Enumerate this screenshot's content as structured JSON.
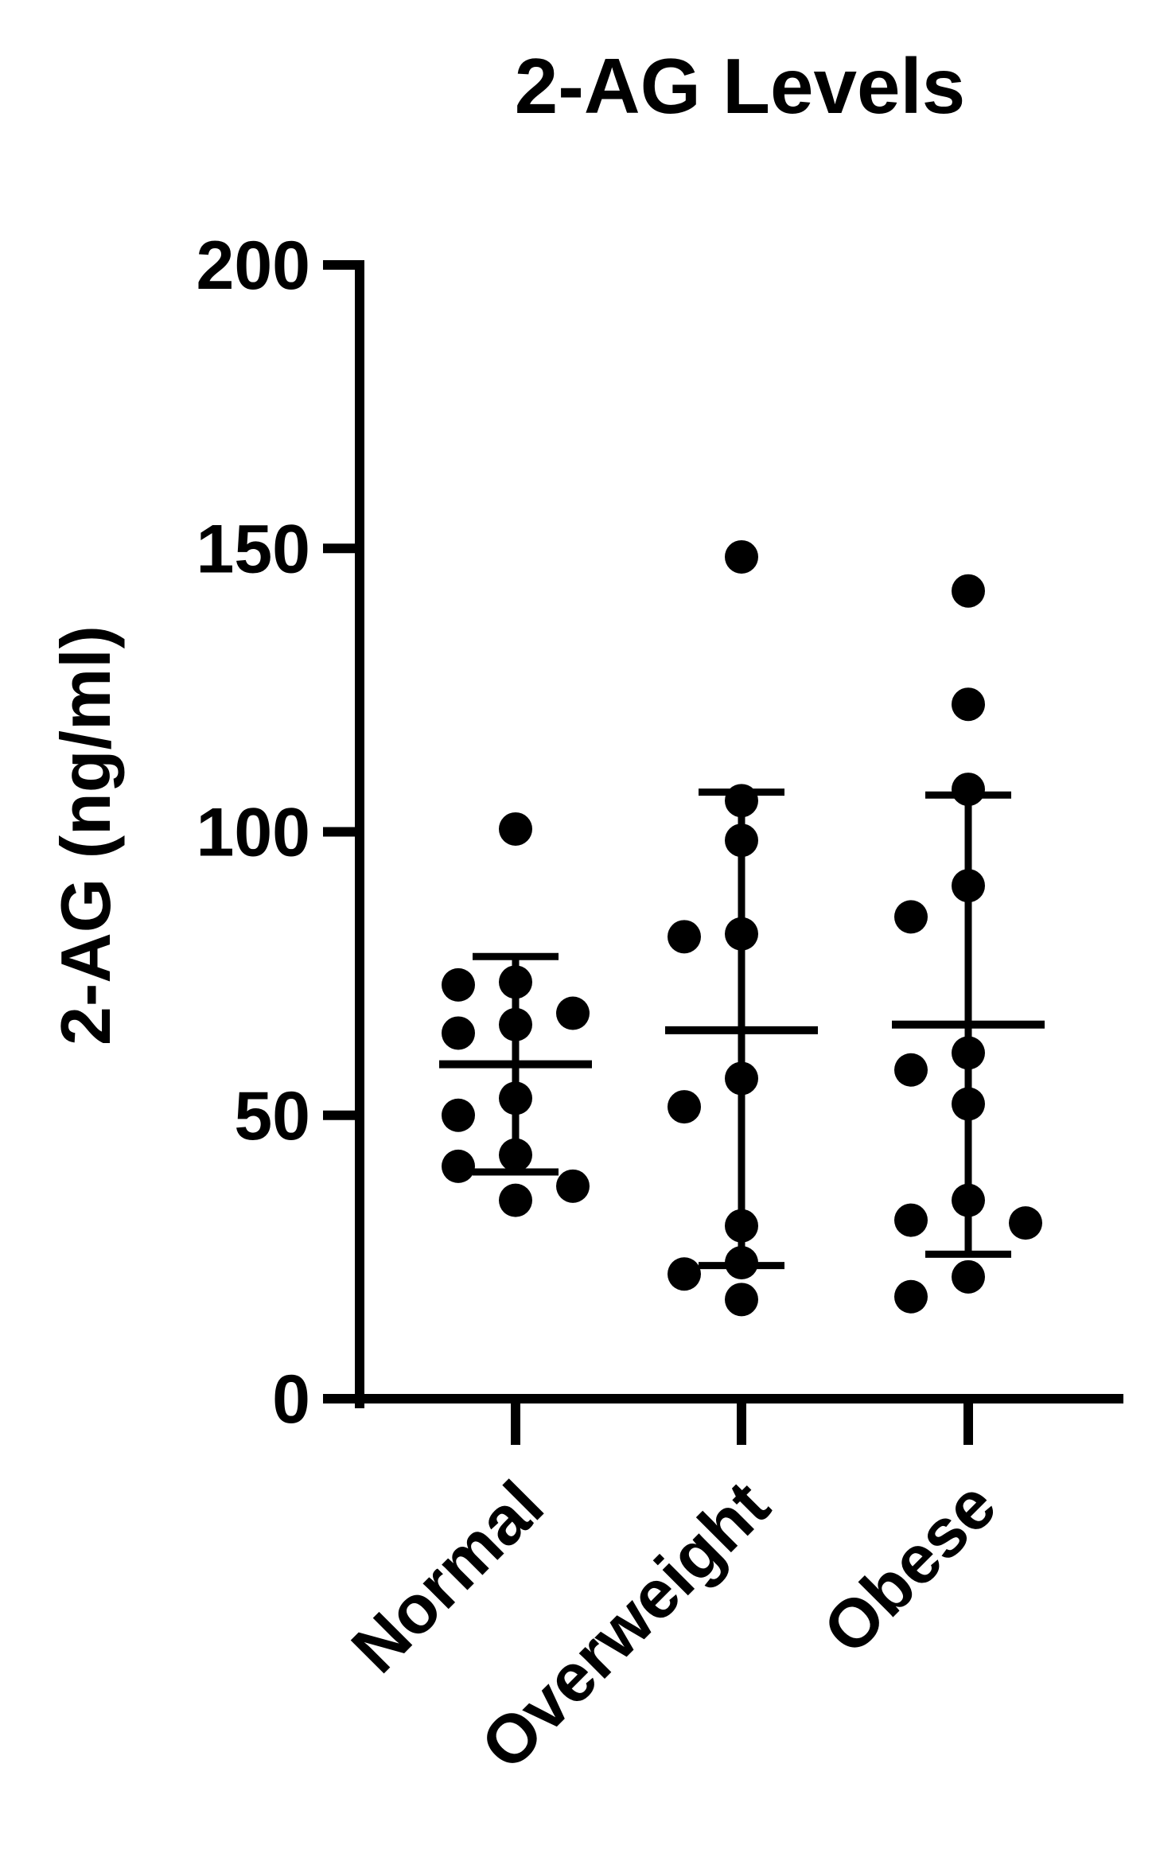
{
  "chart_data": {
    "type": "scatter",
    "title": "2-AG Levels",
    "xlabel": "",
    "ylabel": "2-AG (ng/ml)",
    "ylim": [
      0,
      200
    ],
    "yticks": [
      "0",
      "50",
      "100",
      "150",
      "200"
    ],
    "categories": [
      "Normal",
      "Overweight",
      "Obese"
    ],
    "grid": false,
    "legend": "none",
    "colors": {
      "ink": "#000000",
      "background": "#ffffff"
    },
    "groups": [
      {
        "category": "Normal",
        "points": [
          {
            "x": "Normal",
            "y": 100.5
          },
          {
            "x": "Normal",
            "y": 73.5
          },
          {
            "x": "Normal",
            "y": 73.0
          },
          {
            "x": "Normal",
            "y": 68.0
          },
          {
            "x": "Normal",
            "y": 66.0
          },
          {
            "x": "Normal",
            "y": 64.5
          },
          {
            "x": "Normal",
            "y": 53.0
          },
          {
            "x": "Normal",
            "y": 50.0
          },
          {
            "x": "Normal",
            "y": 43.0
          },
          {
            "x": "Normal",
            "y": 41.0
          },
          {
            "x": "Normal",
            "y": 37.5
          },
          {
            "x": "Normal",
            "y": 35.0
          }
        ],
        "mean": 59.0,
        "sd_upper": 78.0,
        "sd_lower": 40.0
      },
      {
        "category": "Overweight",
        "points": [
          {
            "x": "Overweight",
            "y": 148.5
          },
          {
            "x": "Overweight",
            "y": 105.5
          },
          {
            "x": "Overweight",
            "y": 98.5
          },
          {
            "x": "Overweight",
            "y": 82.0
          },
          {
            "x": "Overweight",
            "y": 81.5
          },
          {
            "x": "Overweight",
            "y": 56.5
          },
          {
            "x": "Overweight",
            "y": 51.5
          },
          {
            "x": "Overweight",
            "y": 30.5
          },
          {
            "x": "Overweight",
            "y": 24.0
          },
          {
            "x": "Overweight",
            "y": 22.0
          },
          {
            "x": "Overweight",
            "y": 17.5
          }
        ],
        "mean": 65.0,
        "sd_upper": 107.0,
        "sd_lower": 23.5
      },
      {
        "category": "Obese",
        "points": [
          {
            "x": "Obese",
            "y": 142.5
          },
          {
            "x": "Obese",
            "y": 122.5
          },
          {
            "x": "Obese",
            "y": 107.5
          },
          {
            "x": "Obese",
            "y": 90.5
          },
          {
            "x": "Obese",
            "y": 85.0
          },
          {
            "x": "Obese",
            "y": 61.0
          },
          {
            "x": "Obese",
            "y": 58.0
          },
          {
            "x": "Obese",
            "y": 52.0
          },
          {
            "x": "Obese",
            "y": 35.0
          },
          {
            "x": "Obese",
            "y": 31.5
          },
          {
            "x": "Obese",
            "y": 31.0
          },
          {
            "x": "Obese",
            "y": 21.5
          },
          {
            "x": "Obese",
            "y": 18.0
          }
        ],
        "mean": 66.0,
        "sd_upper": 106.5,
        "sd_lower": 25.5
      }
    ]
  }
}
